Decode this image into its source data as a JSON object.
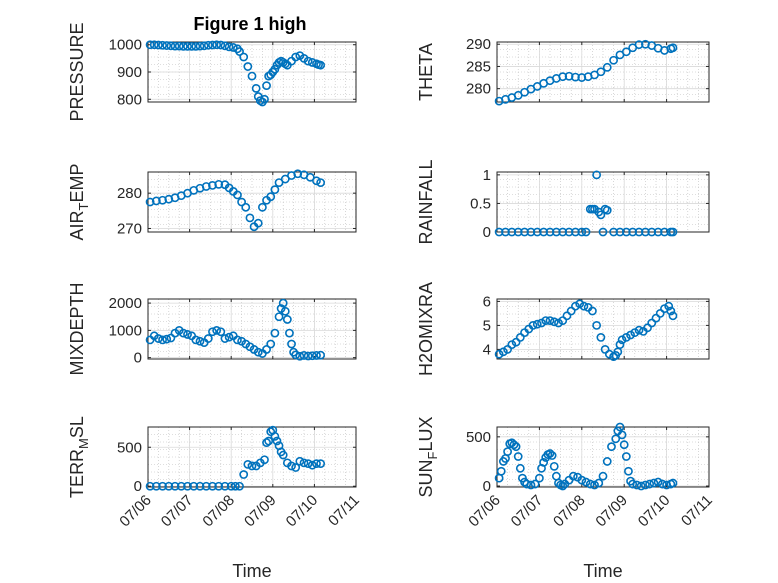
{
  "figure": {
    "title": "Figure 1 high"
  },
  "colors": {
    "marker": "#0072BD",
    "axis": "#262626",
    "grid": "#bdbdbd"
  },
  "x_tick_labels": [
    "07/06",
    "07/07",
    "07/08",
    "07/09",
    "07/10",
    "07/11"
  ],
  "chart_data": [
    {
      "id": "pressure",
      "type": "scatter",
      "title": "Figure 1 high",
      "xlabel": "",
      "ylabel": "PRESSURE",
      "ylim": [
        790,
        1010
      ],
      "yticks": [
        800,
        900,
        1000
      ],
      "grid": true,
      "xticklabels_visible": false,
      "series": [
        {
          "x": [
            0.05,
            0.15,
            0.25,
            0.35,
            0.45,
            0.55,
            0.65,
            0.75,
            0.85,
            0.95,
            1.05,
            1.15,
            1.25,
            1.35,
            1.45,
            1.55,
            1.65,
            1.75,
            1.85,
            1.95,
            2.05,
            2.15,
            2.2,
            2.3,
            2.4,
            2.5,
            2.6,
            2.65,
            2.7,
            2.75,
            2.8,
            2.85,
            2.9,
            2.95,
            3.0,
            3.05,
            3.1,
            3.15,
            3.2,
            3.25,
            3.3,
            3.35,
            3.45,
            3.55,
            3.65,
            3.75,
            3.85,
            3.95,
            4.05,
            4.1,
            4.15
          ],
          "y": [
            1000,
            1000,
            999,
            998,
            997,
            996,
            995,
            995,
            994,
            994,
            994,
            994,
            995,
            996,
            998,
            999,
            1000,
            999,
            996,
            992,
            990,
            985,
            975,
            955,
            920,
            885,
            840,
            810,
            795,
            790,
            800,
            850,
            885,
            890,
            900,
            910,
            925,
            935,
            940,
            935,
            930,
            925,
            940,
            955,
            960,
            950,
            940,
            935,
            930,
            927,
            925
          ]
        }
      ]
    },
    {
      "id": "theta",
      "type": "scatter",
      "xlabel": "",
      "ylabel": "THETA",
      "ylim": [
        277,
        290.5
      ],
      "yticks": [
        280,
        285,
        290
      ],
      "grid": true,
      "xticklabels_visible": false,
      "series": [
        {
          "x": [
            0.05,
            0.2,
            0.35,
            0.5,
            0.65,
            0.8,
            0.95,
            1.1,
            1.25,
            1.4,
            1.55,
            1.7,
            1.85,
            2.0,
            2.15,
            2.3,
            2.45,
            2.6,
            2.75,
            2.9,
            3.05,
            3.2,
            3.35,
            3.5,
            3.65,
            3.8,
            3.95,
            4.1,
            4.15
          ],
          "y": [
            277.2,
            277.6,
            278,
            278.5,
            279.2,
            279.9,
            280.5,
            281.2,
            281.8,
            282.3,
            282.7,
            282.8,
            282.6,
            282.5,
            282.7,
            283.1,
            283.8,
            284.8,
            286.4,
            287.6,
            288.3,
            289.2,
            289.9,
            290,
            289.7,
            289.1,
            288.6,
            289,
            289.2
          ]
        }
      ]
    },
    {
      "id": "air-temp",
      "type": "scatter",
      "xlabel": "",
      "ylabel": "AIR_TEMP",
      "ylim": [
        269,
        286
      ],
      "yticks": [
        270,
        280
      ],
      "grid": true,
      "xticklabels_visible": false,
      "series": [
        {
          "x": [
            0.05,
            0.2,
            0.35,
            0.5,
            0.65,
            0.8,
            0.95,
            1.1,
            1.25,
            1.4,
            1.55,
            1.7,
            1.85,
            1.95,
            2.05,
            2.15,
            2.25,
            2.35,
            2.45,
            2.55,
            2.65,
            2.75,
            2.85,
            2.95,
            3.05,
            3.15,
            3.3,
            3.45,
            3.6,
            3.75,
            3.9,
            4.05,
            4.15
          ],
          "y": [
            277.5,
            277.8,
            278,
            278.3,
            278.7,
            279.3,
            280,
            280.8,
            281.4,
            281.9,
            282.2,
            282.5,
            282.4,
            281.5,
            280.5,
            279.5,
            277.5,
            276,
            273,
            270.5,
            271.5,
            276,
            278,
            279,
            281,
            283,
            284,
            285,
            285.5,
            285.2,
            284.5,
            283.5,
            283
          ]
        }
      ]
    },
    {
      "id": "rainfall",
      "type": "scatter",
      "xlabel": "",
      "ylabel": "RAINFALL",
      "ylim": [
        0,
        1.05
      ],
      "yticks": [
        0,
        0.5,
        1
      ],
      "grid": true,
      "xticklabels_visible": false,
      "series": [
        {
          "x": [
            0.05,
            0.2,
            0.35,
            0.5,
            0.65,
            0.8,
            0.95,
            1.1,
            1.25,
            1.4,
            1.55,
            1.7,
            1.85,
            2.0,
            2.1,
            2.2,
            2.25,
            2.3,
            2.35,
            2.4,
            2.45,
            2.5,
            2.55,
            2.6,
            2.75,
            2.9,
            3.05,
            3.2,
            3.35,
            3.5,
            3.65,
            3.8,
            3.95,
            4.1,
            4.15
          ],
          "y": [
            0,
            0,
            0,
            0,
            0,
            0,
            0,
            0,
            0,
            0,
            0,
            0,
            0,
            0,
            0,
            0.4,
            0.4,
            0.4,
            1.0,
            0.35,
            0.3,
            0.0,
            0.4,
            0.38,
            0,
            0,
            0,
            0,
            0,
            0,
            0,
            0,
            0,
            0,
            0
          ]
        }
      ]
    },
    {
      "id": "mixdepth",
      "type": "scatter",
      "xlabel": "",
      "ylabel": "MIXDEPTH",
      "ylim": [
        -50,
        2150
      ],
      "yticks": [
        0,
        1000,
        2000
      ],
      "grid": true,
      "xticklabels_visible": false,
      "series": [
        {
          "x": [
            0.05,
            0.15,
            0.25,
            0.35,
            0.45,
            0.55,
            0.65,
            0.75,
            0.85,
            0.95,
            1.05,
            1.15,
            1.25,
            1.35,
            1.45,
            1.55,
            1.65,
            1.75,
            1.85,
            1.95,
            2.05,
            2.15,
            2.25,
            2.35,
            2.45,
            2.55,
            2.65,
            2.75,
            2.85,
            2.95,
            3.05,
            3.15,
            3.2,
            3.25,
            3.3,
            3.35,
            3.4,
            3.45,
            3.5,
            3.55,
            3.65,
            3.75,
            3.85,
            3.95,
            4.05,
            4.15
          ],
          "y": [
            650,
            800,
            700,
            650,
            680,
            720,
            900,
            1000,
            900,
            850,
            800,
            650,
            600,
            550,
            700,
            950,
            1000,
            950,
            700,
            750,
            800,
            650,
            600,
            500,
            400,
            300,
            200,
            150,
            300,
            500,
            900,
            1500,
            1800,
            2000,
            1700,
            1400,
            900,
            500,
            200,
            100,
            50,
            80,
            60,
            70,
            80,
            90
          ]
        }
      ]
    },
    {
      "id": "h2omixra",
      "type": "scatter",
      "xlabel": "",
      "ylabel": "H2OMIXRA",
      "ylim": [
        3.6,
        6.1
      ],
      "yticks": [
        4,
        5,
        6
      ],
      "grid": true,
      "xticklabels_visible": false,
      "series": [
        {
          "x": [
            0.05,
            0.15,
            0.25,
            0.35,
            0.45,
            0.55,
            0.65,
            0.75,
            0.85,
            0.95,
            1.05,
            1.15,
            1.25,
            1.35,
            1.45,
            1.55,
            1.65,
            1.75,
            1.85,
            1.95,
            2.05,
            2.15,
            2.25,
            2.35,
            2.45,
            2.55,
            2.65,
            2.75,
            2.8,
            2.85,
            2.9,
            2.95,
            3.05,
            3.15,
            3.25,
            3.35,
            3.45,
            3.55,
            3.65,
            3.75,
            3.85,
            3.95,
            4.05,
            4.1,
            4.15
          ],
          "y": [
            3.8,
            3.9,
            4.0,
            4.2,
            4.3,
            4.5,
            4.7,
            4.85,
            5.0,
            5.05,
            5.1,
            5.2,
            5.2,
            5.15,
            5.1,
            5.2,
            5.4,
            5.6,
            5.8,
            5.9,
            5.8,
            5.75,
            5.6,
            5.0,
            4.5,
            4.0,
            3.8,
            3.7,
            3.75,
            3.9,
            4.2,
            4.4,
            4.5,
            4.6,
            4.7,
            4.8,
            4.75,
            4.9,
            5.1,
            5.3,
            5.5,
            5.7,
            5.8,
            5.6,
            5.4
          ]
        }
      ]
    },
    {
      "id": "terr-msl",
      "type": "scatter",
      "xlabel": "Time",
      "ylabel": "TERR_MSL",
      "ylim": [
        -10,
        760
      ],
      "yticks": [
        0,
        500
      ],
      "grid": true,
      "xticklabels_visible": true,
      "series": [
        {
          "x": [
            0.05,
            0.2,
            0.35,
            0.5,
            0.65,
            0.8,
            0.95,
            1.1,
            1.25,
            1.4,
            1.55,
            1.7,
            1.85,
            2.0,
            2.1,
            2.2,
            2.3,
            2.4,
            2.5,
            2.6,
            2.7,
            2.8,
            2.85,
            2.9,
            2.95,
            3.0,
            3.05,
            3.1,
            3.15,
            3.2,
            3.25,
            3.35,
            3.45,
            3.55,
            3.65,
            3.75,
            3.85,
            3.95,
            4.05,
            4.15
          ],
          "y": [
            0,
            0,
            0,
            0,
            0,
            0,
            0,
            0,
            0,
            0,
            0,
            0,
            0,
            0,
            0,
            0,
            150,
            280,
            260,
            260,
            300,
            340,
            560,
            580,
            700,
            720,
            640,
            580,
            520,
            440,
            400,
            300,
            260,
            240,
            320,
            300,
            290,
            270,
            290,
            290
          ]
        }
      ]
    },
    {
      "id": "sun-flux",
      "type": "scatter",
      "xlabel": "Time",
      "ylabel": "SUN_FLUX",
      "ylim": [
        -10,
        600
      ],
      "yticks": [
        0,
        500
      ],
      "grid": true,
      "xticklabels_visible": true,
      "series": [
        {
          "x": [
            0.05,
            0.1,
            0.15,
            0.2,
            0.25,
            0.3,
            0.35,
            0.4,
            0.45,
            0.5,
            0.55,
            0.6,
            0.65,
            0.7,
            0.8,
            0.9,
            1.0,
            1.05,
            1.1,
            1.15,
            1.2,
            1.25,
            1.3,
            1.35,
            1.4,
            1.45,
            1.5,
            1.55,
            1.6,
            1.7,
            1.8,
            1.9,
            2.0,
            2.1,
            2.2,
            2.3,
            2.4,
            2.5,
            2.6,
            2.7,
            2.8,
            2.85,
            2.9,
            2.95,
            3.0,
            3.05,
            3.1,
            3.15,
            3.2,
            3.3,
            3.4,
            3.5,
            3.6,
            3.7,
            3.8,
            3.9,
            4.0,
            4.1,
            4.15
          ],
          "y": [
            80,
            150,
            250,
            280,
            350,
            430,
            440,
            420,
            400,
            300,
            180,
            80,
            40,
            20,
            10,
            20,
            80,
            180,
            240,
            290,
            320,
            330,
            310,
            200,
            100,
            30,
            10,
            0,
            20,
            60,
            100,
            90,
            60,
            40,
            20,
            10,
            30,
            100,
            250,
            400,
            480,
            560,
            600,
            520,
            420,
            300,
            150,
            50,
            20,
            10,
            0,
            10,
            20,
            30,
            40,
            20,
            10,
            20,
            30
          ]
        }
      ]
    }
  ]
}
